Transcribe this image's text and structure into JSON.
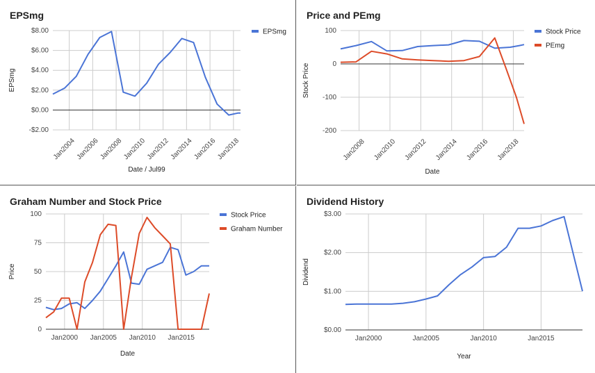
{
  "chart_data": [
    {
      "type": "line",
      "title": "EPSmg",
      "xlabel": "Date / Jul99",
      "ylabel": "EPSmg",
      "xlim": [
        2002.6,
        2018.6
      ],
      "ylim": [
        -2,
        8
      ],
      "yticks": [
        -2,
        0,
        2,
        4,
        6,
        8
      ],
      "yticklabels": [
        "-$2.00",
        "$0.00",
        "$2.00",
        "$4.00",
        "$6.00",
        "$8.00"
      ],
      "xticks": [
        2004,
        2006,
        2008,
        2010,
        2012,
        2014,
        2016,
        2018
      ],
      "xticklabels": [
        "Jan2004",
        "Jan2006",
        "Jan2008",
        "Jan2010",
        "Jan2012",
        "Jan2014",
        "Jan2016",
        "Jan2018"
      ],
      "legend": "right",
      "series": [
        {
          "name": "EPSmg",
          "color": "#4a74d6",
          "x": [
            2002.6,
            2003.6,
            2004.6,
            2005.6,
            2006.6,
            2007.6,
            2008.6,
            2009.6,
            2010.6,
            2011.6,
            2012.6,
            2013.6,
            2014.6,
            2015.6,
            2016.6,
            2017.6,
            2018.4,
            2018.6
          ],
          "y": [
            1.6,
            2.2,
            3.4,
            5.6,
            7.3,
            7.9,
            1.8,
            1.4,
            2.7,
            4.6,
            5.8,
            7.2,
            6.8,
            3.3,
            0.6,
            -0.5,
            -0.3,
            -0.3
          ]
        }
      ]
    },
    {
      "type": "line",
      "title": "Price and PEmg",
      "xlabel": "Date",
      "ylabel": "Stock Price",
      "xlim": [
        2006.8,
        2018.7
      ],
      "ylim": [
        -200,
        100
      ],
      "yticks": [
        -200,
        -100,
        0,
        100
      ],
      "yticklabels": [
        "-200",
        "-100",
        "0",
        "100"
      ],
      "xticks": [
        2008,
        2010,
        2012,
        2014,
        2016,
        2018
      ],
      "xticklabels": [
        "Jan2008",
        "Jan2010",
        "Jan2012",
        "Jan2014",
        "Jan2016",
        "Jan2018"
      ],
      "legend": "right",
      "series": [
        {
          "name": "Stock Price",
          "color": "#4a74d6",
          "x": [
            2006.8,
            2007.8,
            2008.8,
            2009.8,
            2010.8,
            2011.8,
            2012.8,
            2013.8,
            2014.8,
            2015.8,
            2016.8,
            2017.8,
            2018.4,
            2018.7
          ],
          "y": [
            45,
            55,
            67,
            39,
            40,
            52,
            55,
            57,
            70,
            68,
            47,
            50,
            55,
            58
          ]
        },
        {
          "name": "PEmg",
          "color": "#dd4b28",
          "x": [
            2006.8,
            2007.8,
            2008.8,
            2009.8,
            2010.8,
            2011.8,
            2012.8,
            2013.8,
            2014.8,
            2015.8,
            2016.8,
            2017.5,
            2018.2,
            2018.7
          ],
          "y": [
            5,
            6,
            38,
            30,
            15,
            12,
            10,
            8,
            10,
            22,
            78,
            -10,
            -100,
            -180
          ]
        }
      ]
    },
    {
      "type": "line",
      "title": "Graham Number and Stock Price",
      "xlabel": "Date",
      "ylabel": "Price",
      "xlim": [
        1997.6,
        2018.6
      ],
      "ylim": [
        0,
        100
      ],
      "yticks": [
        0,
        25,
        50,
        75,
        100
      ],
      "yticklabels": [
        "0",
        "25",
        "50",
        "75",
        "100"
      ],
      "xticks": [
        2000,
        2005,
        2010,
        2015
      ],
      "xticklabels": [
        "Jan2000",
        "Jan2005",
        "Jan2010",
        "Jan2015"
      ],
      "legend": "right",
      "series": [
        {
          "name": "Stock Price",
          "color": "#4a74d6",
          "x": [
            1997.6,
            1998.6,
            1999.6,
            2000.6,
            2001.6,
            2002.6,
            2003.6,
            2004.6,
            2005.6,
            2006.6,
            2007.6,
            2008.6,
            2009.6,
            2010.6,
            2011.6,
            2012.6,
            2013.6,
            2014.6,
            2015.6,
            2016.6,
            2017.6,
            2018.6
          ],
          "y": [
            19,
            17,
            18,
            22,
            23,
            18,
            25,
            33,
            44,
            55,
            67,
            40,
            39,
            52,
            55,
            58,
            71,
            69,
            47,
            50,
            55,
            55
          ]
        },
        {
          "name": "Graham Number",
          "color": "#dd4b28",
          "x": [
            1997.6,
            1998.6,
            1999.6,
            2000.6,
            2001.6,
            2002.6,
            2003.6,
            2004.6,
            2005.6,
            2006.6,
            2007.6,
            2008.6,
            2009.6,
            2010.6,
            2011.6,
            2012.6,
            2013.6,
            2014.6,
            2015.6,
            2016.6,
            2017.6,
            2018.6
          ],
          "y": [
            10,
            15,
            27,
            27,
            0,
            41,
            58,
            82,
            91,
            90,
            0,
            45,
            83,
            97,
            88,
            81,
            74,
            0,
            0,
            0,
            0,
            31
          ]
        }
      ]
    },
    {
      "type": "line",
      "title": "Dividend History",
      "xlabel": "Year",
      "ylabel": "Dividend",
      "xlim": [
        1998,
        2018.6
      ],
      "ylim": [
        0,
        3
      ],
      "yticks": [
        0,
        1,
        2,
        3
      ],
      "yticklabels": [
        "$0.00",
        "$1.00",
        "$2.00",
        "$3.00"
      ],
      "xticks": [
        2000,
        2005,
        2010,
        2015
      ],
      "xticklabels": [
        "Jan2000",
        "Jan2005",
        "Jan2010",
        "Jan2015"
      ],
      "legend": "none",
      "series": [
        {
          "name": "",
          "color": "#4a74d6",
          "x": [
            1998,
            1999,
            2000,
            2001,
            2002,
            2003,
            2004,
            2005,
            2006,
            2007,
            2008,
            2009,
            2010,
            2011,
            2012,
            2013,
            2014,
            2015,
            2016,
            2017,
            2018.6
          ],
          "y": [
            0.66,
            0.67,
            0.67,
            0.67,
            0.67,
            0.69,
            0.73,
            0.8,
            0.88,
            1.17,
            1.43,
            1.63,
            1.87,
            1.9,
            2.14,
            2.63,
            2.63,
            2.69,
            2.83,
            2.93,
            1.0
          ]
        }
      ]
    }
  ]
}
